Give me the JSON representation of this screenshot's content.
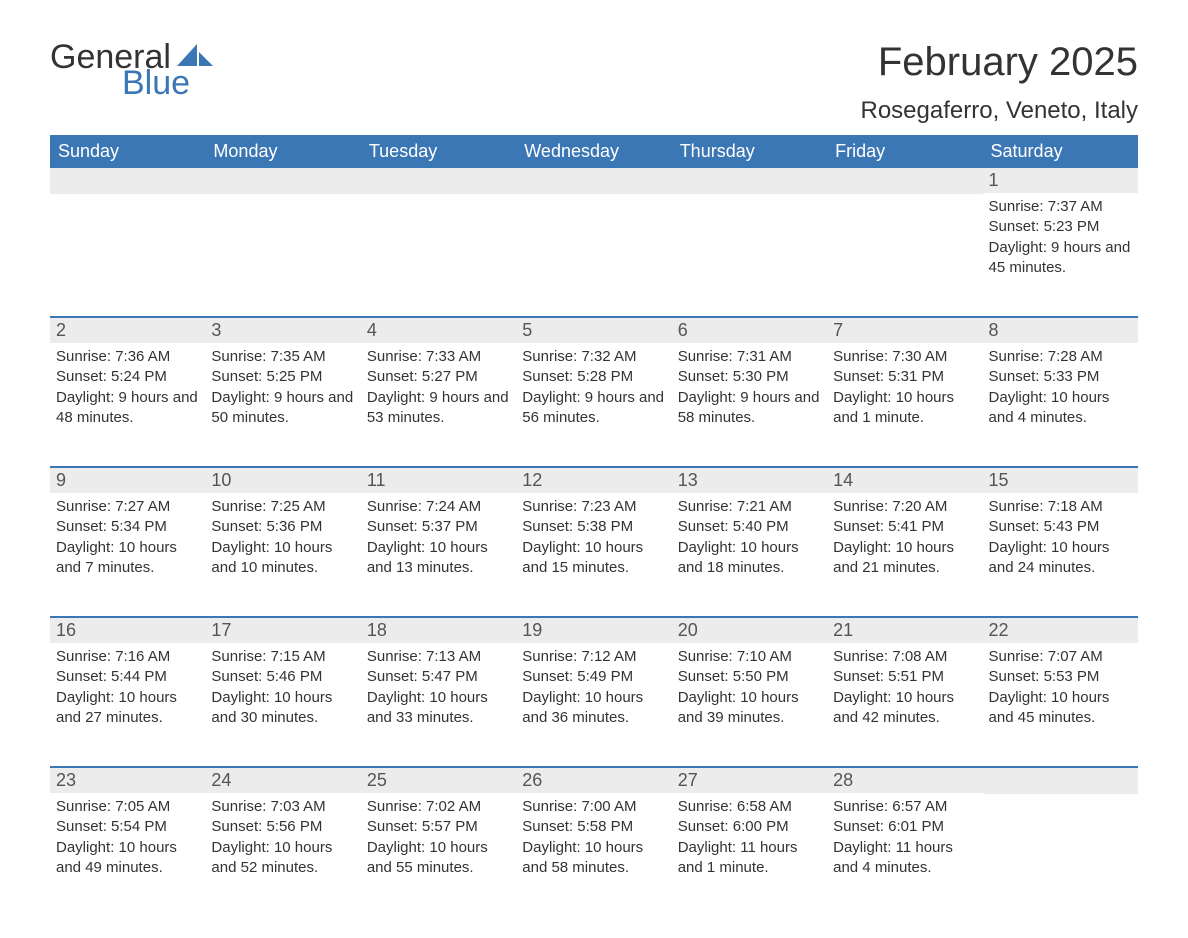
{
  "logo": {
    "text1": "General",
    "text2": "Blue",
    "color_general": "#333333",
    "color_blue": "#3b76b5",
    "sail_color": "#3b76b5"
  },
  "title": "February 2025",
  "location": "Rosegaferro, Veneto, Italy",
  "colors": {
    "header_bg": "#3b76b5",
    "header_text": "#ffffff",
    "daynum_bg": "#ececec",
    "week_border": "#3b76b5",
    "body_text": "#333333"
  },
  "fonts": {
    "title_size": 40,
    "location_size": 24,
    "weekday_size": 18,
    "daynum_size": 18,
    "body_size": 15
  },
  "weekdays": [
    "Sunday",
    "Monday",
    "Tuesday",
    "Wednesday",
    "Thursday",
    "Friday",
    "Saturday"
  ],
  "weeks": [
    [
      {
        "empty": true
      },
      {
        "empty": true
      },
      {
        "empty": true
      },
      {
        "empty": true
      },
      {
        "empty": true
      },
      {
        "empty": true
      },
      {
        "n": "1",
        "sunrise": "Sunrise: 7:37 AM",
        "sunset": "Sunset: 5:23 PM",
        "daylight": "Daylight: 9 hours and 45 minutes."
      }
    ],
    [
      {
        "n": "2",
        "sunrise": "Sunrise: 7:36 AM",
        "sunset": "Sunset: 5:24 PM",
        "daylight": "Daylight: 9 hours and 48 minutes."
      },
      {
        "n": "3",
        "sunrise": "Sunrise: 7:35 AM",
        "sunset": "Sunset: 5:25 PM",
        "daylight": "Daylight: 9 hours and 50 minutes."
      },
      {
        "n": "4",
        "sunrise": "Sunrise: 7:33 AM",
        "sunset": "Sunset: 5:27 PM",
        "daylight": "Daylight: 9 hours and 53 minutes."
      },
      {
        "n": "5",
        "sunrise": "Sunrise: 7:32 AM",
        "sunset": "Sunset: 5:28 PM",
        "daylight": "Daylight: 9 hours and 56 minutes."
      },
      {
        "n": "6",
        "sunrise": "Sunrise: 7:31 AM",
        "sunset": "Sunset: 5:30 PM",
        "daylight": "Daylight: 9 hours and 58 minutes."
      },
      {
        "n": "7",
        "sunrise": "Sunrise: 7:30 AM",
        "sunset": "Sunset: 5:31 PM",
        "daylight": "Daylight: 10 hours and 1 minute."
      },
      {
        "n": "8",
        "sunrise": "Sunrise: 7:28 AM",
        "sunset": "Sunset: 5:33 PM",
        "daylight": "Daylight: 10 hours and 4 minutes."
      }
    ],
    [
      {
        "n": "9",
        "sunrise": "Sunrise: 7:27 AM",
        "sunset": "Sunset: 5:34 PM",
        "daylight": "Daylight: 10 hours and 7 minutes."
      },
      {
        "n": "10",
        "sunrise": "Sunrise: 7:25 AM",
        "sunset": "Sunset: 5:36 PM",
        "daylight": "Daylight: 10 hours and 10 minutes."
      },
      {
        "n": "11",
        "sunrise": "Sunrise: 7:24 AM",
        "sunset": "Sunset: 5:37 PM",
        "daylight": "Daylight: 10 hours and 13 minutes."
      },
      {
        "n": "12",
        "sunrise": "Sunrise: 7:23 AM",
        "sunset": "Sunset: 5:38 PM",
        "daylight": "Daylight: 10 hours and 15 minutes."
      },
      {
        "n": "13",
        "sunrise": "Sunrise: 7:21 AM",
        "sunset": "Sunset: 5:40 PM",
        "daylight": "Daylight: 10 hours and 18 minutes."
      },
      {
        "n": "14",
        "sunrise": "Sunrise: 7:20 AM",
        "sunset": "Sunset: 5:41 PM",
        "daylight": "Daylight: 10 hours and 21 minutes."
      },
      {
        "n": "15",
        "sunrise": "Sunrise: 7:18 AM",
        "sunset": "Sunset: 5:43 PM",
        "daylight": "Daylight: 10 hours and 24 minutes."
      }
    ],
    [
      {
        "n": "16",
        "sunrise": "Sunrise: 7:16 AM",
        "sunset": "Sunset: 5:44 PM",
        "daylight": "Daylight: 10 hours and 27 minutes."
      },
      {
        "n": "17",
        "sunrise": "Sunrise: 7:15 AM",
        "sunset": "Sunset: 5:46 PM",
        "daylight": "Daylight: 10 hours and 30 minutes."
      },
      {
        "n": "18",
        "sunrise": "Sunrise: 7:13 AM",
        "sunset": "Sunset: 5:47 PM",
        "daylight": "Daylight: 10 hours and 33 minutes."
      },
      {
        "n": "19",
        "sunrise": "Sunrise: 7:12 AM",
        "sunset": "Sunset: 5:49 PM",
        "daylight": "Daylight: 10 hours and 36 minutes."
      },
      {
        "n": "20",
        "sunrise": "Sunrise: 7:10 AM",
        "sunset": "Sunset: 5:50 PM",
        "daylight": "Daylight: 10 hours and 39 minutes."
      },
      {
        "n": "21",
        "sunrise": "Sunrise: 7:08 AM",
        "sunset": "Sunset: 5:51 PM",
        "daylight": "Daylight: 10 hours and 42 minutes."
      },
      {
        "n": "22",
        "sunrise": "Sunrise: 7:07 AM",
        "sunset": "Sunset: 5:53 PM",
        "daylight": "Daylight: 10 hours and 45 minutes."
      }
    ],
    [
      {
        "n": "23",
        "sunrise": "Sunrise: 7:05 AM",
        "sunset": "Sunset: 5:54 PM",
        "daylight": "Daylight: 10 hours and 49 minutes."
      },
      {
        "n": "24",
        "sunrise": "Sunrise: 7:03 AM",
        "sunset": "Sunset: 5:56 PM",
        "daylight": "Daylight: 10 hours and 52 minutes."
      },
      {
        "n": "25",
        "sunrise": "Sunrise: 7:02 AM",
        "sunset": "Sunset: 5:57 PM",
        "daylight": "Daylight: 10 hours and 55 minutes."
      },
      {
        "n": "26",
        "sunrise": "Sunrise: 7:00 AM",
        "sunset": "Sunset: 5:58 PM",
        "daylight": "Daylight: 10 hours and 58 minutes."
      },
      {
        "n": "27",
        "sunrise": "Sunrise: 6:58 AM",
        "sunset": "Sunset: 6:00 PM",
        "daylight": "Daylight: 11 hours and 1 minute."
      },
      {
        "n": "28",
        "sunrise": "Sunrise: 6:57 AM",
        "sunset": "Sunset: 6:01 PM",
        "daylight": "Daylight: 11 hours and 4 minutes."
      },
      {
        "empty": true
      }
    ]
  ]
}
